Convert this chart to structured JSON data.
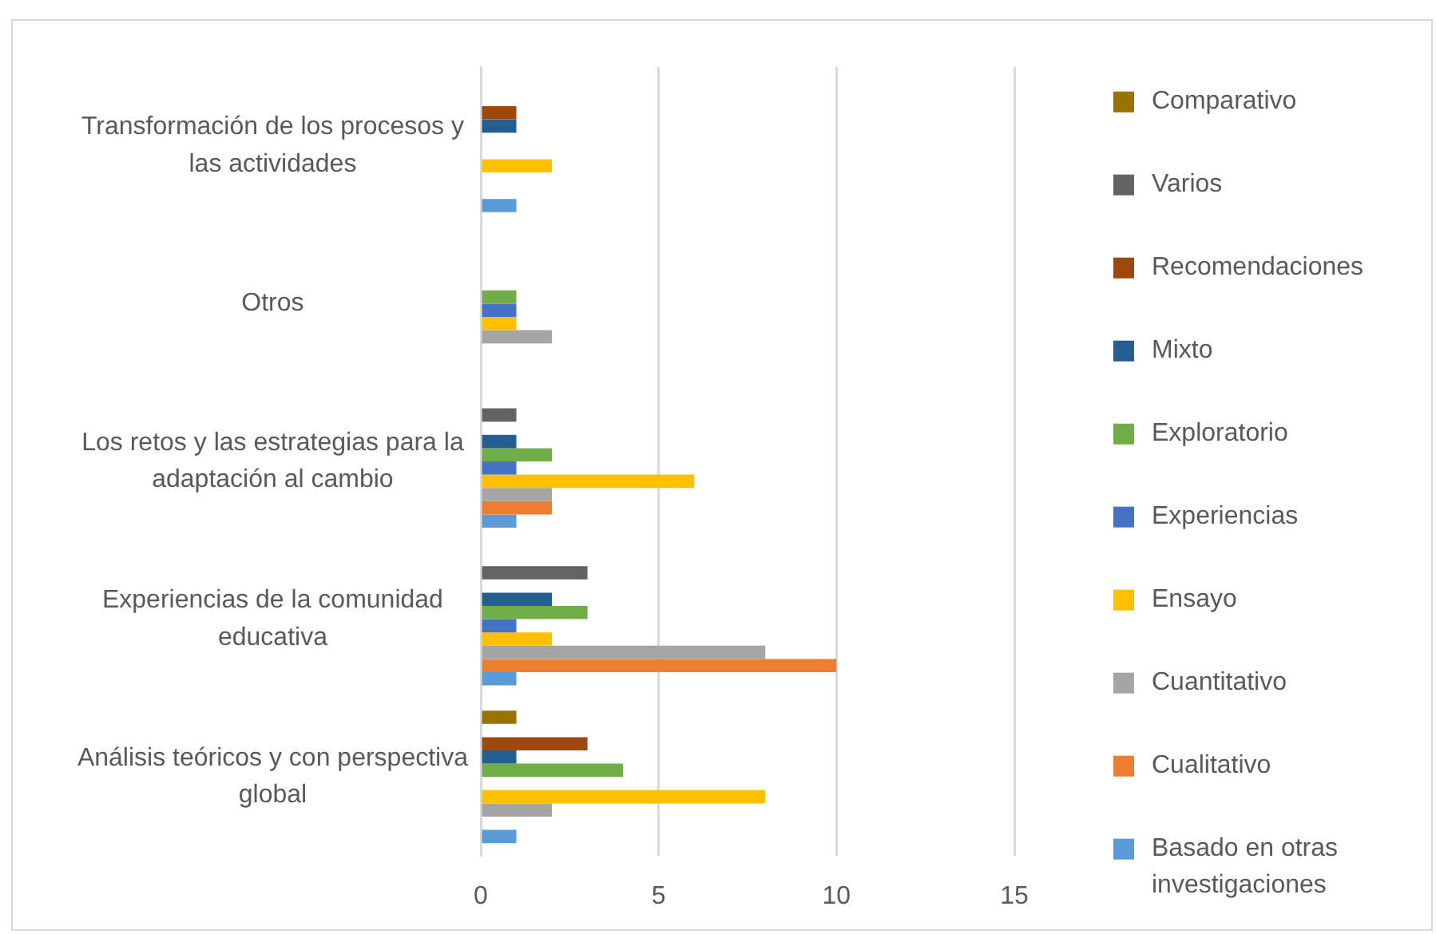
{
  "chart_data": {
    "type": "bar",
    "orientation": "horizontal",
    "categories": [
      "Transformación de los procesos y las actividades",
      "Otros",
      "Los retos y las estrategias para la adaptación al cambio",
      "Experiencias de la comunidad educativa",
      "Análisis teóricos y con perspectiva global"
    ],
    "series": [
      {
        "name": "Comparativo",
        "color": "#997300",
        "values": [
          null,
          null,
          null,
          null,
          1
        ]
      },
      {
        "name": "Varios",
        "color": "#636363",
        "values": [
          null,
          null,
          1,
          3,
          null
        ]
      },
      {
        "name": "Recomendaciones",
        "color": "#9e480e",
        "values": [
          1,
          null,
          null,
          null,
          3
        ]
      },
      {
        "name": "Mixto",
        "color": "#255e91",
        "values": [
          1,
          null,
          1,
          2,
          1
        ]
      },
      {
        "name": "Exploratorio",
        "color": "#70ad47",
        "values": [
          null,
          1,
          2,
          3,
          4
        ]
      },
      {
        "name": "Experiencias",
        "color": "#4472c4",
        "values": [
          null,
          1,
          1,
          1,
          null
        ]
      },
      {
        "name": "Ensayo",
        "color": "#ffc000",
        "values": [
          2,
          1,
          6,
          2,
          8
        ]
      },
      {
        "name": "Cuantitativo",
        "color": "#a5a5a5",
        "values": [
          null,
          2,
          2,
          8,
          2
        ]
      },
      {
        "name": "Cualitativo",
        "color": "#ed7d31",
        "values": [
          null,
          null,
          2,
          10,
          null
        ]
      },
      {
        "name": "Basado en otras investigaciones",
        "color": "#5b9bd5",
        "values": [
          1,
          null,
          1,
          1,
          1
        ]
      }
    ],
    "xlim": [
      0,
      15
    ],
    "xticks": [
      0,
      5,
      10,
      15
    ],
    "grid": "x",
    "legend": "right"
  }
}
